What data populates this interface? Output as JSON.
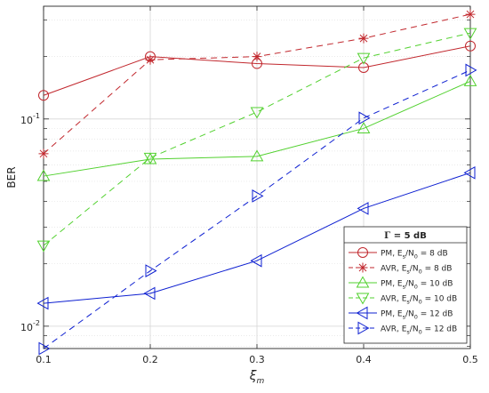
{
  "chart_data": {
    "type": "line",
    "title": "",
    "xlabel": "ξm",
    "xlabel_main": "ξ",
    "xlabel_sub": "m",
    "ylabel": "BER",
    "yscale": "log",
    "xlim": [
      0.1,
      0.5
    ],
    "ylim": [
      0.0078,
      0.35
    ],
    "grid": true,
    "x": [
      0.1,
      0.2,
      0.3,
      0.4,
      0.5
    ],
    "xticks": [
      "0.1",
      "0.2",
      "0.3",
      "0.4",
      "0.5"
    ],
    "yticks": [
      {
        "value": 0.1,
        "base": "10",
        "exp": "-1"
      },
      {
        "value": 0.01,
        "base": "10",
        "exp": "-2"
      }
    ],
    "legend": {
      "position": "bottom-right",
      "title": "Γ = 5 dB",
      "title_symbol": "Γ",
      "title_rest": " = 5 dB"
    },
    "series": [
      {
        "name": "PM, Es/N0 = 8 dB",
        "label_a": "PM, E",
        "label_b": " = 8 dB",
        "color": "#c1272d",
        "dash": false,
        "marker": "circle",
        "values": [
          0.13,
          0.2,
          0.185,
          0.177,
          0.225
        ]
      },
      {
        "name": "AVR, Es/N0 = 8 dB",
        "label_a": "AVR, E",
        "label_b": " = 8 dB",
        "color": "#c1272d",
        "dash": true,
        "marker": "asterisk",
        "values": [
          0.068,
          0.193,
          0.2,
          0.245,
          0.32
        ]
      },
      {
        "name": "PM, Es/N0 = 10 dB",
        "label_a": "PM, E",
        "label_b": " = 10 dB",
        "color": "#52d12f",
        "dash": false,
        "marker": "triangle-up",
        "values": [
          0.053,
          0.064,
          0.066,
          0.09,
          0.152
        ]
      },
      {
        "name": "AVR, Es/N0 = 10 dB",
        "label_a": "AVR, E",
        "label_b": " = 10 dB",
        "color": "#52d12f",
        "dash": true,
        "marker": "triangle-down",
        "values": [
          0.0245,
          0.065,
          0.108,
          0.197,
          0.26
        ]
      },
      {
        "name": "PM, Es/N0 = 12 dB",
        "label_a": "PM, E",
        "label_b": " = 12 dB",
        "color": "#0d1fd1",
        "dash": false,
        "marker": "triangle-left",
        "values": [
          0.0129,
          0.0144,
          0.0207,
          0.037,
          0.055
        ]
      },
      {
        "name": "AVR, Es/N0 = 12 dB",
        "label_a": "AVR, E",
        "label_b": " = 12 dB",
        "color": "#0d1fd1",
        "dash": true,
        "marker": "triangle-right",
        "values": [
          0.0078,
          0.0185,
          0.0425,
          0.101,
          0.172
        ]
      }
    ]
  }
}
